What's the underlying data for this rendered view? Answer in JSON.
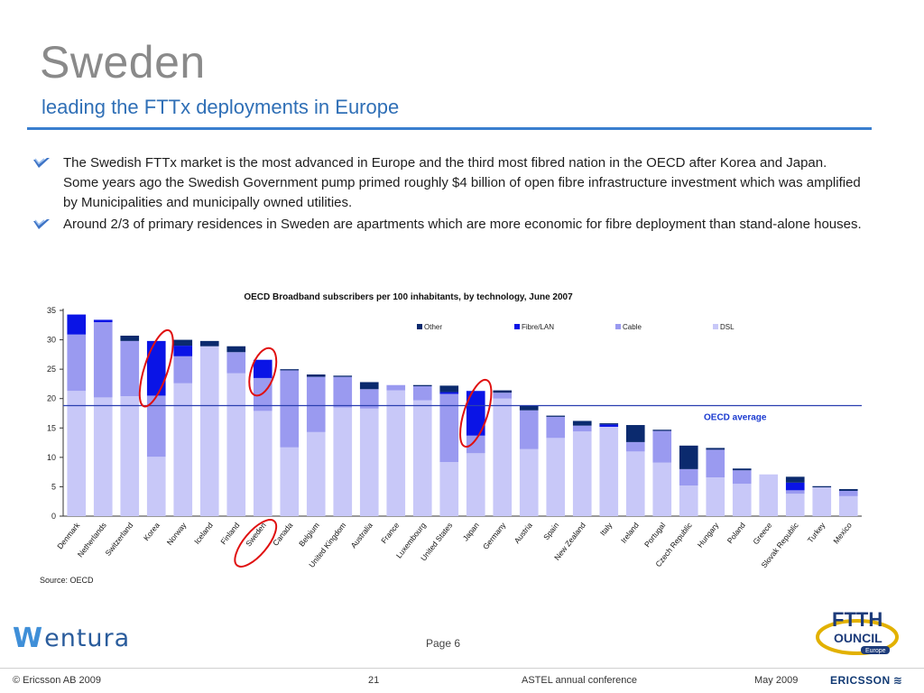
{
  "header": {
    "title": "Sweden",
    "subtitle": "leading the FTTx deployments in Europe"
  },
  "bullets": [
    "The Swedish FTTx market is the most advanced in Europe and the third most fibred nation in the OECD after  Korea and Japan.  Some years ago the Swedish Government pump primed roughly $4 billion of open fibre infrastructure investment which was amplified by Municipalities and municipally owned utilities.",
    "Around 2/3 of primary residences in Sweden are apartments which are more economic for fibre deployment than stand-alone houses."
  ],
  "chart_data": {
    "type": "bar",
    "stacked": true,
    "title": "OECD Broadband subscribers per 100 inhabitants, by technology, June 2007",
    "source": "Source: OECD",
    "ylim": [
      0,
      35
    ],
    "yticks": [
      0,
      5,
      10,
      15,
      20,
      25,
      30,
      35
    ],
    "categories": [
      "Denmark",
      "Netherlands",
      "Switzerland",
      "Korea",
      "Norway",
      "Iceland",
      "Finland",
      "Sweden",
      "Canada",
      "Belgium",
      "United Kingdom",
      "Australia",
      "France",
      "Luxembourg",
      "United States",
      "Japan",
      "Germany",
      "Austria",
      "Spain",
      "New Zealand",
      "Italy",
      "Ireland",
      "Portugal",
      "Czech Republic",
      "Hungary",
      "Poland",
      "Greece",
      "Slovak Republic",
      "Turkey",
      "Mexico"
    ],
    "series": [
      {
        "name": "DSL",
        "color": "#c8c8f8",
        "values": [
          21.3,
          20.2,
          20.4,
          10.1,
          22.6,
          28.9,
          24.3,
          17.9,
          11.7,
          14.3,
          18.5,
          18.3,
          21.4,
          19.7,
          9.2,
          10.7,
          20.0,
          11.4,
          13.3,
          14.4,
          15.2,
          11.0,
          9.1,
          5.2,
          6.6,
          5.5,
          7.1,
          3.8,
          4.9,
          3.4
        ]
      },
      {
        "name": "Cable",
        "color": "#9a9af0",
        "values": [
          9.6,
          12.8,
          9.4,
          10.4,
          4.6,
          0.0,
          3.6,
          5.6,
          13.1,
          9.4,
          5.2,
          3.3,
          0.9,
          2.4,
          11.6,
          3.0,
          1.0,
          6.6,
          3.6,
          1.0,
          0.0,
          1.6,
          5.4,
          2.8,
          4.7,
          2.3,
          0.0,
          0.6,
          0.0,
          0.9
        ]
      },
      {
        "name": "Fibre/LAN",
        "color": "#0a14e6",
        "values": [
          3.4,
          0.4,
          0.0,
          9.3,
          1.8,
          0.0,
          0.0,
          3.1,
          0.0,
          0.0,
          0.0,
          0.0,
          0.0,
          0.0,
          0.3,
          7.6,
          0.0,
          0.0,
          0.0,
          0.0,
          0.4,
          0.0,
          0.0,
          0.0,
          0.0,
          0.0,
          0.0,
          1.3,
          0.0,
          0.0
        ]
      },
      {
        "name": "Other",
        "color": "#0b2a6e",
        "values": [
          0.0,
          0.0,
          0.9,
          0.0,
          1.0,
          0.9,
          1.0,
          0.0,
          0.2,
          0.4,
          0.2,
          1.2,
          0.0,
          0.2,
          1.1,
          0.0,
          0.4,
          0.8,
          0.2,
          0.8,
          0.2,
          2.9,
          0.2,
          4.0,
          0.3,
          0.3,
          0.0,
          1.0,
          0.2,
          0.3
        ]
      }
    ],
    "reference_line": {
      "label": "OECD average",
      "value": 18.8,
      "color": "#2a3fb0"
    },
    "highlighted": [
      "Korea",
      "Sweden",
      "Japan"
    ],
    "highlight_color": "#e01010",
    "legend_placement": "top"
  },
  "footer": {
    "logo_text": "entura",
    "page_label": "Page 6",
    "copyright": "© Ericsson AB 2009",
    "slide_number": "21",
    "conference": "ASTEL annual conference",
    "date": "May 2009",
    "brand": "ERICSSON",
    "ftth_top": "FTTH",
    "ftth_mid": "OUNCIL",
    "ftth_bottom": "Europe"
  }
}
